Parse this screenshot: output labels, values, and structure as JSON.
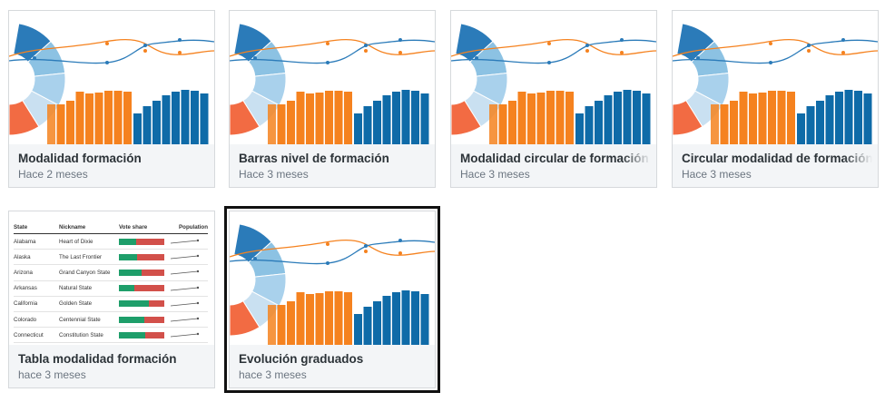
{
  "cards": [
    {
      "title": "Modalidad formación",
      "date": "Hace 2 meses",
      "type": "chart"
    },
    {
      "title": "Barras nivel de formación",
      "date": "Hace 3 meses",
      "type": "chart"
    },
    {
      "title": "Modalidad circular de formación",
      "date": "Hace 3 meses",
      "type": "chart"
    },
    {
      "title": "Circular modalidad de formación",
      "date": "Hace 3 meses",
      "type": "chart"
    },
    {
      "title": "Tabla modalidad formación",
      "date": "hace 3 meses",
      "type": "table"
    },
    {
      "title": "Evolución graduados",
      "date": "hace 3 meses",
      "type": "chart",
      "selected": true
    }
  ],
  "table_preview": {
    "headers": [
      "State",
      "Nickname",
      "Vote share",
      "Population"
    ],
    "rows": [
      {
        "state": "Alabama",
        "nickname": "Heart of Dixie",
        "share": 0.38
      },
      {
        "state": "Alaska",
        "nickname": "The Last Frontier",
        "share": 0.4
      },
      {
        "state": "Arizona",
        "nickname": "Grand Canyon State",
        "share": 0.5
      },
      {
        "state": "Arkansas",
        "nickname": "Natural State",
        "share": 0.34
      },
      {
        "state": "California",
        "nickname": "Golden State",
        "share": 0.65
      },
      {
        "state": "Colorado",
        "nickname": "Centennial State",
        "share": 0.55
      },
      {
        "state": "Connecticut",
        "nickname": "Constitution State",
        "share": 0.58
      }
    ]
  },
  "colors": {
    "blue_dark": "#2b7bb9",
    "blue_mid": "#8cc2e3",
    "blue_light": "#c9e0f1",
    "orange": "#f5821f",
    "coral": "#f26b43",
    "bar_blue": "#0f6ba8",
    "vote_green": "#1e9e6a",
    "vote_red": "#d2504a"
  }
}
